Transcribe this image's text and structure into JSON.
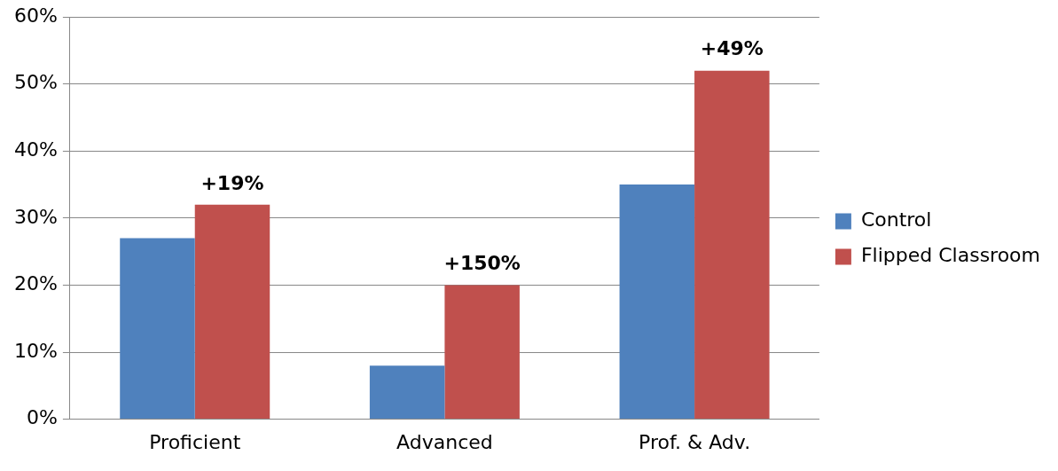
{
  "chart_data": {
    "type": "bar",
    "categories": [
      "Proficient",
      "Advanced",
      "Prof. & Adv."
    ],
    "series": [
      {
        "name": "Control",
        "color": "#4f81bd",
        "values": [
          27,
          8,
          35
        ]
      },
      {
        "name": "Flipped Classroom",
        "color": "#c0504d",
        "values": [
          32,
          20,
          52
        ]
      }
    ],
    "ylim": [
      0,
      60
    ],
    "yticks": [
      {
        "value": 0,
        "label": "0%"
      },
      {
        "value": 10,
        "label": "10%"
      },
      {
        "value": 20,
        "label": "20%"
      },
      {
        "value": 30,
        "label": "30%"
      },
      {
        "value": 40,
        "label": "40%"
      },
      {
        "value": 50,
        "label": "50%"
      },
      {
        "value": 60,
        "label": "60%"
      }
    ],
    "annotations": [
      {
        "text": "+19%",
        "x": "Proficient",
        "y": 32
      },
      {
        "text": "+150%",
        "x": "Advanced",
        "y": 20
      },
      {
        "text": "+49%",
        "x": "Prof. & Adv.",
        "y": 52
      }
    ],
    "grid": "y",
    "legend": "right"
  }
}
